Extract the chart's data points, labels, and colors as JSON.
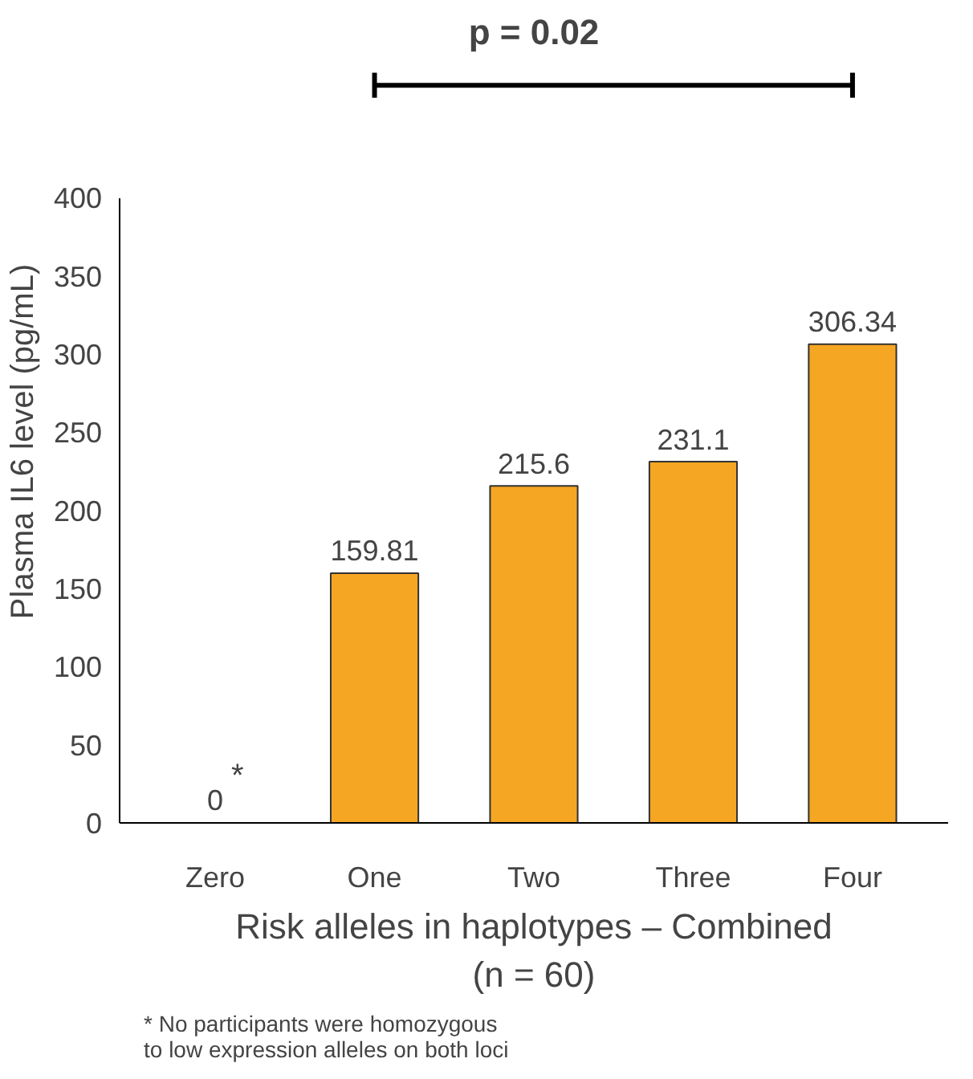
{
  "chart_data": {
    "type": "bar",
    "title": "p = 0.02",
    "xlabel": "Risk alleles in haplotypes – Combined\n(n = 60)",
    "ylabel": "Plasma IL6 level (pg/mL)",
    "categories": [
      "Zero",
      "One",
      "Two",
      "Three",
      "Four"
    ],
    "values": [
      0,
      159.81,
      215.6,
      231.1,
      306.34
    ],
    "color": "#f5a623",
    "ylim": [
      0,
      400
    ],
    "yticks": [
      0,
      50,
      100,
      150,
      200,
      250,
      300,
      350,
      400
    ],
    "grid": false,
    "data_labels": true,
    "annotations": [
      {
        "text": "*",
        "x": "Zero",
        "y": 0
      },
      "* No participants were homozygous\nto low expression alleles on both loci"
    ]
  }
}
